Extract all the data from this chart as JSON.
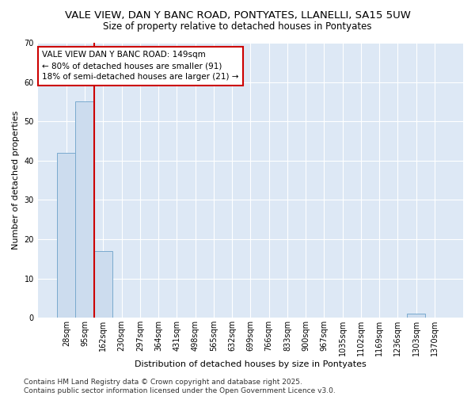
{
  "title": "VALE VIEW, DAN Y BANC ROAD, PONTYATES, LLANELLI, SA15 5UW",
  "subtitle": "Size of property relative to detached houses in Pontyates",
  "xlabel": "Distribution of detached houses by size in Pontyates",
  "ylabel": "Number of detached properties",
  "categories": [
    "28sqm",
    "95sqm",
    "162sqm",
    "230sqm",
    "297sqm",
    "364sqm",
    "431sqm",
    "498sqm",
    "565sqm",
    "632sqm",
    "699sqm",
    "766sqm",
    "833sqm",
    "900sqm",
    "967sqm",
    "1035sqm",
    "1102sqm",
    "1169sqm",
    "1236sqm",
    "1303sqm",
    "1370sqm"
  ],
  "values": [
    42,
    55,
    17,
    0,
    0,
    0,
    0,
    0,
    0,
    0,
    0,
    0,
    0,
    0,
    0,
    0,
    0,
    0,
    0,
    1,
    0
  ],
  "bar_color": "#ccdcee",
  "bar_edge_color": "#7aaace",
  "red_line_x": 1.5,
  "red_line_color": "#cc0000",
  "annotation_text": "VALE VIEW DAN Y BANC ROAD: 149sqm\n← 80% of detached houses are smaller (91)\n18% of semi-detached houses are larger (21) →",
  "annotation_box_color": "#ffffff",
  "annotation_box_edge": "#cc0000",
  "ylim": [
    0,
    70
  ],
  "yticks": [
    0,
    10,
    20,
    30,
    40,
    50,
    60,
    70
  ],
  "background_color": "#dde8f5",
  "footer": "Contains HM Land Registry data © Crown copyright and database right 2025.\nContains public sector information licensed under the Open Government Licence v3.0.",
  "title_fontsize": 9.5,
  "subtitle_fontsize": 8.5,
  "axis_label_fontsize": 8,
  "tick_fontsize": 7,
  "annotation_fontsize": 7.5,
  "footer_fontsize": 6.5
}
